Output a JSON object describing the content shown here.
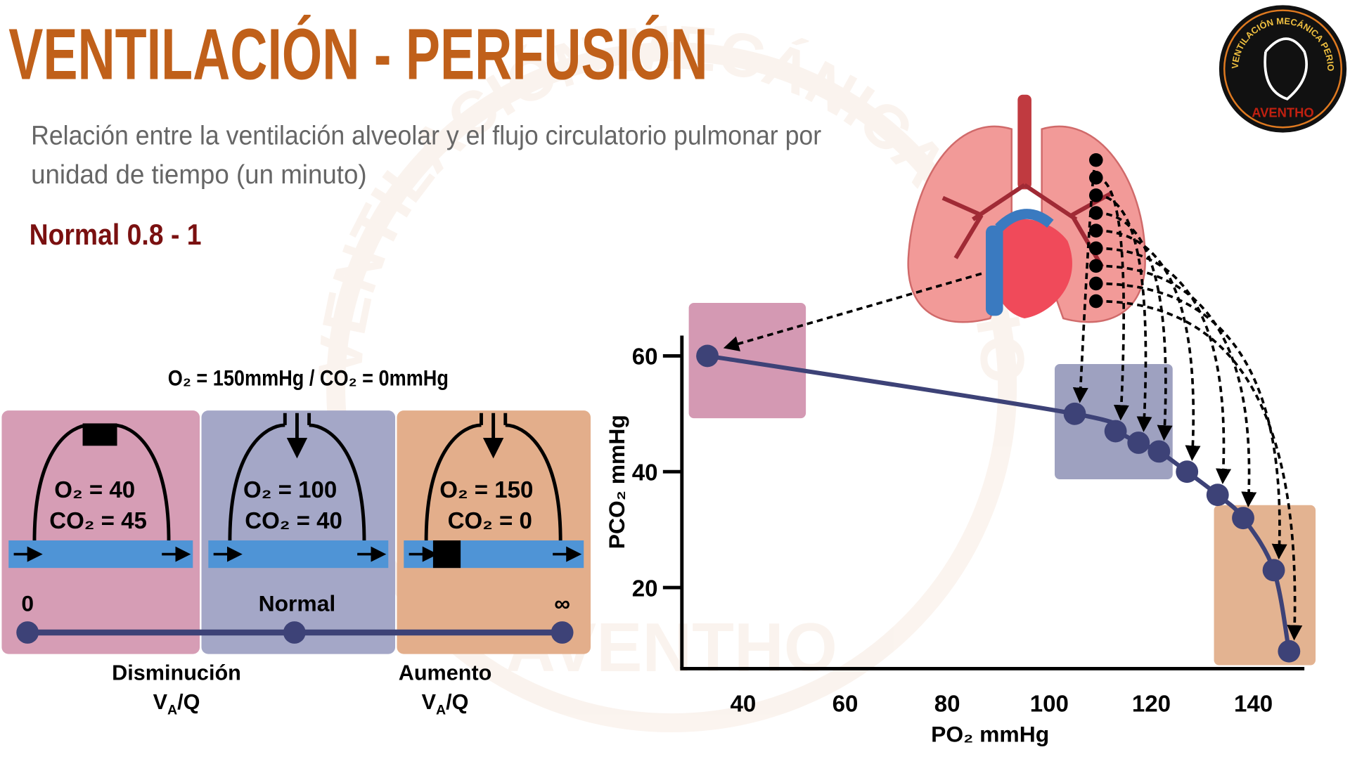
{
  "header": {
    "title": "VENTILACIÓN - PERFUSIÓN",
    "subtitle_lines": [
      "Relación entre la ventilación alveolar y el flujo circulatorio pulmonar por",
      "unidad de tiempo (un minuto)"
    ],
    "normal": "Normal 0.8 - 1"
  },
  "logo": {
    "ring_text": "VENTILACIÓN MECÁNICA PERIOPERATORIA",
    "brand": "AVENTHO"
  },
  "inspired": "O₂ = 150mmHg / CO₂ = 0mmHg",
  "units": [
    {
      "o2": "O₂ = 40",
      "co2": "CO₂ = 45"
    },
    {
      "o2": "O₂ = 100",
      "co2": "CO₂ = 40"
    },
    {
      "o2": "O₂ = 150",
      "co2": "CO₂ = 0"
    }
  ],
  "scale": {
    "labels": [
      "0",
      "Normal",
      "∞"
    ],
    "captions": [
      {
        "word": "Disminución",
        "ratio": [
          "V",
          "A",
          "/Q"
        ]
      },
      {
        "word": "Aumento",
        "ratio": [
          "V",
          "A",
          "/Q"
        ]
      }
    ]
  },
  "chart_data": {
    "type": "line",
    "x_label": "PO₂ mmHg",
    "y_label": "PCO₂ mmHg",
    "x": [
      33,
      105,
      113,
      117.5,
      121.5,
      127,
      133,
      138,
      144,
      147
    ],
    "values": [
      60,
      50,
      47,
      45,
      43.5,
      40,
      36,
      32,
      23,
      9
    ],
    "color": "#3d4277",
    "xlim": [
      28,
      150
    ],
    "ylim": [
      6,
      63.5
    ],
    "xticks": [
      40,
      60,
      80,
      100,
      120,
      140
    ],
    "yticks": [
      20,
      40,
      60
    ]
  }
}
